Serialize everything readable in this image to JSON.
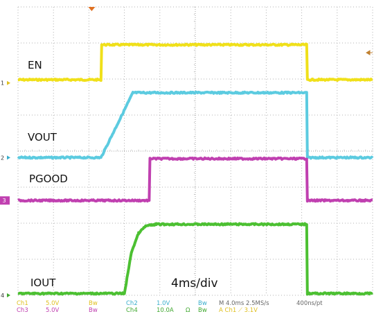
{
  "chart_data": {
    "type": "line",
    "time_per_div": "4ms/div",
    "divisions": {
      "x": 10,
      "y": 8
    },
    "grid": true,
    "x": {
      "unit": "div",
      "range": [
        0,
        10
      ]
    },
    "y": {
      "unit": "div",
      "range": [
        0,
        8
      ]
    },
    "trigger_marker": {
      "x": 2.0
    },
    "series": [
      {
        "name": "EN",
        "channel": "1",
        "color": "#f0e01a",
        "ground": 5.89,
        "points": [
          [
            0,
            5.98
          ],
          [
            2.34,
            5.98
          ],
          [
            2.36,
            6.95
          ],
          [
            8.14,
            6.95
          ],
          [
            8.16,
            5.98
          ],
          [
            10,
            5.98
          ]
        ]
      },
      {
        "name": "VOUT",
        "channel": "2",
        "color": "#5ccbe0",
        "ground": 3.82,
        "points": [
          [
            0,
            3.82
          ],
          [
            2.34,
            3.82
          ],
          [
            3.24,
            5.62
          ],
          [
            8.14,
            5.62
          ],
          [
            8.16,
            3.82
          ],
          [
            10,
            3.82
          ]
        ]
      },
      {
        "name": "PGOOD",
        "channel": "3",
        "color": "#c040b0",
        "ground": 2.63,
        "points": [
          [
            0,
            2.63
          ],
          [
            3.7,
            2.63
          ],
          [
            3.72,
            3.79
          ],
          [
            8.14,
            3.79
          ],
          [
            8.16,
            2.63
          ],
          [
            10,
            2.63
          ]
        ]
      },
      {
        "name": "IOUT",
        "channel": "4",
        "color": "#4cc032",
        "ground": 0.0,
        "points": [
          [
            0,
            0.05
          ],
          [
            3.0,
            0.05
          ],
          [
            3.2,
            1.2
          ],
          [
            3.4,
            1.72
          ],
          [
            3.6,
            1.92
          ],
          [
            3.9,
            1.97
          ],
          [
            8.14,
            1.97
          ],
          [
            8.16,
            0.05
          ],
          [
            10,
            0.05
          ]
        ]
      }
    ]
  },
  "labels": {
    "en": "EN",
    "vout": "VOUT",
    "pgood": "PGOOD",
    "iout": "IOUT",
    "timebase": "4ms/div",
    "ch1_marker": "1",
    "ch2_marker": "2",
    "ch3_marker": "3",
    "ch4_marker": "4"
  },
  "status": {
    "ch1": "Ch1",
    "ch1_scale": "5.0V",
    "ch1_bw": "Bw",
    "ch2": "Ch2",
    "ch2_scale": "1.0V",
    "ch2_bw": "Bw",
    "ch3": "Ch3",
    "ch3_scale": "5.0V",
    "ch3_bw": "Bw",
    "ch4": "Ch4",
    "ch4_scale": "10.0A",
    "ch4_ohm": "Ω",
    "ch4_bw": "Bw",
    "horizontal": "M 4.0ms 2.5MS/s",
    "resolution": "400ns/pt",
    "trigger": "A  Ch1  ⟋  3.1V"
  },
  "colors": {
    "ch1": "#e0c020",
    "ch2": "#3aaecc",
    "ch3": "#c040b0",
    "ch4": "#40a830",
    "status_text_default": "#8a8a8a",
    "trigger_marker": "#e07020"
  }
}
